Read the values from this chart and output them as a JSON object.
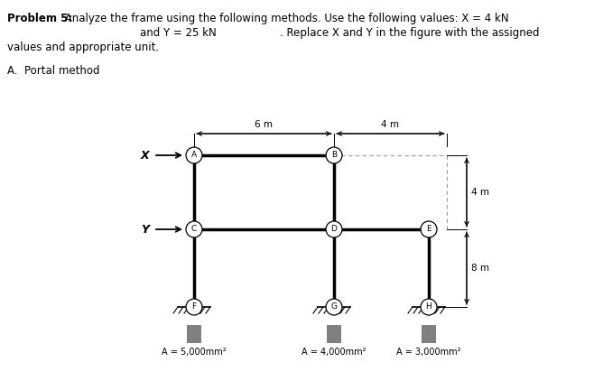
{
  "title_bold": "Problem 5:",
  "title_rest": " Analyze the frame using the following methods. Use the following values: X = 4 kN",
  "line2_left": "and Y = 25 kN",
  "line2_right": ". Replace X and Y in the figure with the assigned",
  "line3": "values and appropriate unit.",
  "section": "A.  Portal method",
  "dim_6m": "6 m",
  "dim_4m_horiz": "4 m",
  "dim_4m_vert": "4 m",
  "dim_8m": "8 m",
  "label_A_area": "A = 5,000mm²",
  "label_B_area": "A = 4,000mm²",
  "label_C_area": "A = 3,000mm²",
  "background_color": "#ffffff",
  "line_color": "#000000",
  "node_labels": [
    "A",
    "B",
    "C",
    "D",
    "E",
    "F",
    "G",
    "H"
  ]
}
